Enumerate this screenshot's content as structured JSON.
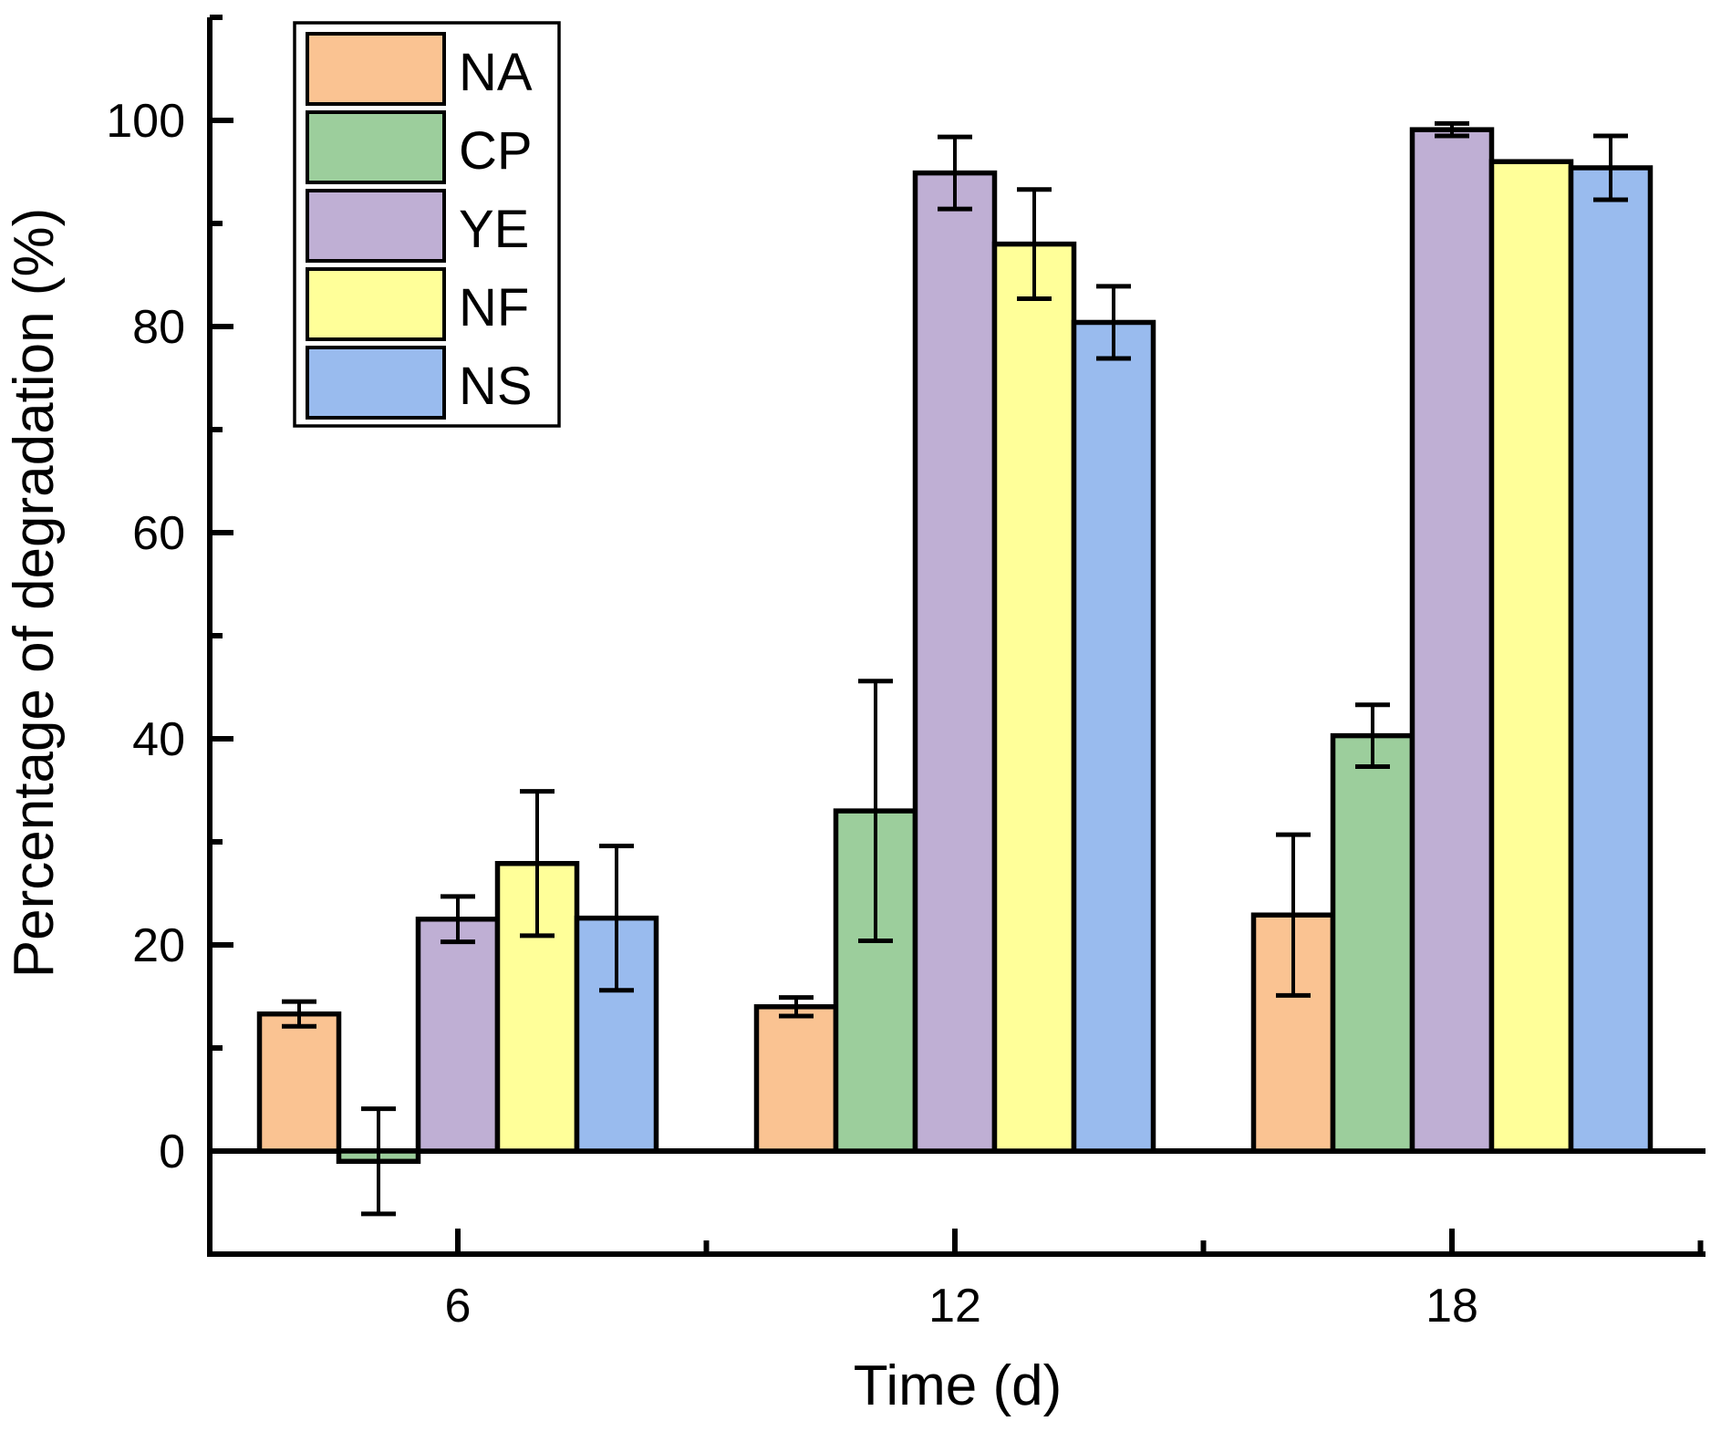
{
  "chart_data": {
    "type": "bar",
    "title": "",
    "xlabel": "Time (d)",
    "ylabel": "Percentage of degradation (%)",
    "categories": [
      "6",
      "12",
      "18"
    ],
    "series": [
      {
        "name": "NA",
        "color": "#FAC392",
        "values": [
          13.3,
          14.0,
          22.9
        ],
        "errors": [
          1.2,
          0.9,
          7.8
        ]
      },
      {
        "name": "CP",
        "color": "#9CCE9C",
        "values": [
          -1.0,
          33.0,
          40.3
        ],
        "errors": [
          5.1,
          12.6,
          3.0
        ]
      },
      {
        "name": "YE",
        "color": "#BFAFD4",
        "values": [
          22.5,
          94.9,
          99.1
        ],
        "errors": [
          2.2,
          3.5,
          0.6
        ]
      },
      {
        "name": "NF",
        "color": "#FFFF99",
        "values": [
          27.9,
          88.0,
          96.0
        ],
        "errors": [
          7.0,
          5.3,
          0
        ]
      },
      {
        "name": "NS",
        "color": "#99BBEE",
        "values": [
          22.6,
          80.4,
          95.4
        ],
        "errors": [
          7.0,
          3.5,
          3.1
        ]
      }
    ],
    "y_axis": {
      "min": -10,
      "max": 110,
      "major_ticks": [
        0,
        20,
        40,
        60,
        80,
        100
      ],
      "minor_ticks": [
        10,
        30,
        50,
        70,
        90,
        110
      ]
    },
    "x_axis": {
      "tick_labels": [
        "6",
        "12",
        "18"
      ]
    },
    "legend": {
      "position": "top-left",
      "entries": [
        "NA",
        "CP",
        "YE",
        "NF",
        "NS"
      ]
    },
    "grid": false,
    "bar_outline_color": "#000000",
    "error_bar_color": "#000000"
  }
}
